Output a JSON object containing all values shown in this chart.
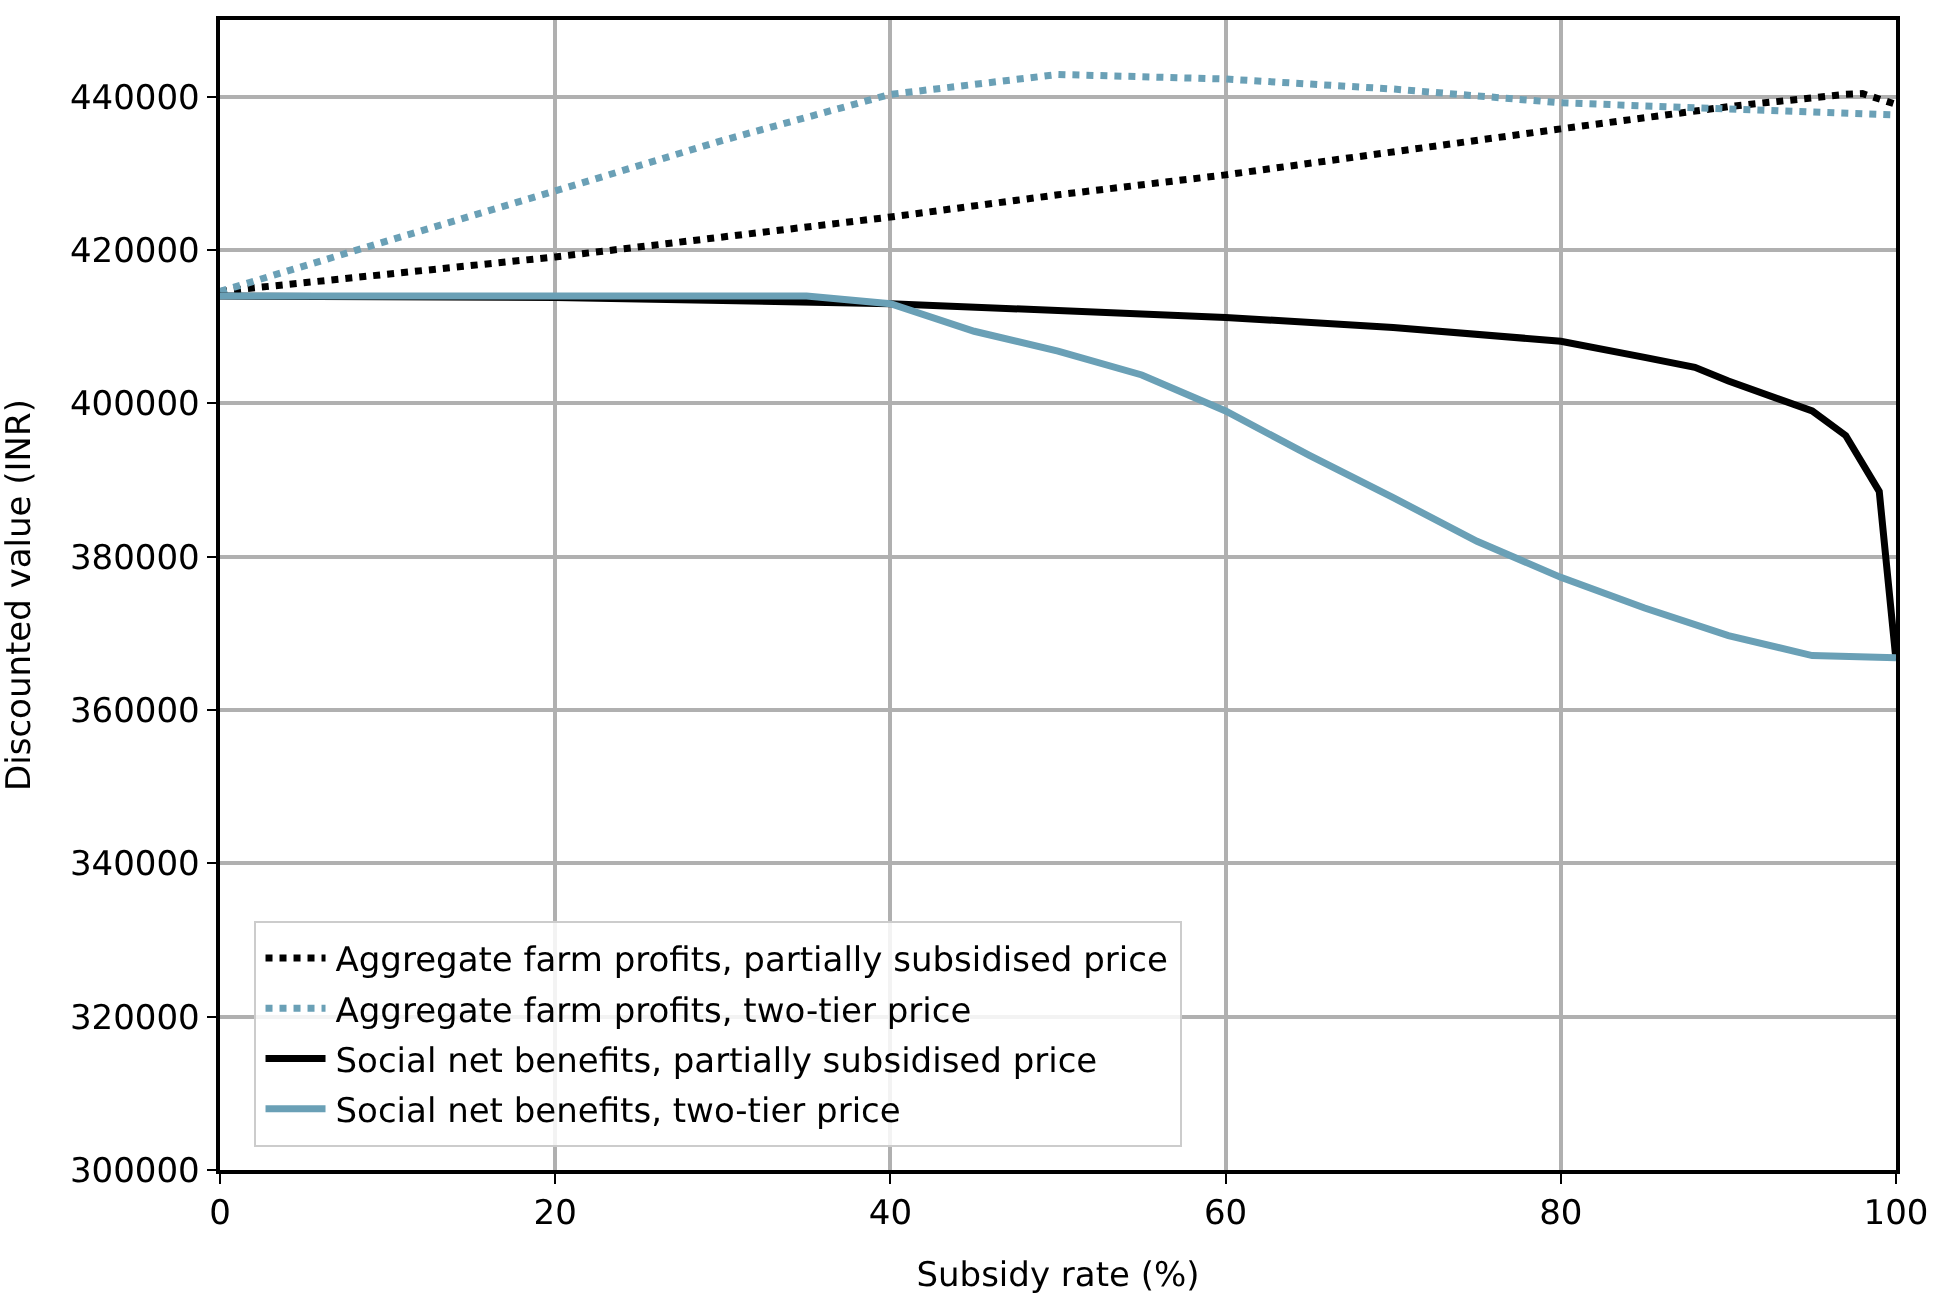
{
  "chart_data": {
    "type": "line",
    "xlabel": "Subsidy rate (%)",
    "ylabel": "Discounted value (INR)",
    "xlim": [
      0,
      100
    ],
    "xticks": [
      0,
      20,
      40,
      60,
      80,
      100
    ],
    "ylim": [
      300000,
      450000
    ],
    "yticks": [
      300000,
      320000,
      340000,
      360000,
      380000,
      400000,
      420000,
      440000
    ],
    "grid": true,
    "legend": "bottom left",
    "marker": "none",
    "series": [
      {
        "name": "Aggregate farm profits, partially subsidised price",
        "color": "#000000",
        "line_style": "dotted",
        "x": [
          0,
          20,
          40,
          50,
          60,
          80,
          90,
          97,
          98,
          100
        ],
        "values": [
          414600,
          419100,
          424300,
          427200,
          429800,
          435800,
          438700,
          440300,
          440400,
          439000
        ]
      },
      {
        "name": "Aggregate farm profits, two-tier price",
        "color": "#6aa0b6",
        "line_style": "dotted",
        "x": [
          0,
          10,
          20,
          30,
          40,
          50,
          60,
          70,
          80,
          90,
          100
        ],
        "values": [
          414600,
          421200,
          427700,
          434300,
          440300,
          442900,
          442300,
          441000,
          439200,
          438400,
          437600
        ]
      },
      {
        "name": "Social net benefits, partially subsidised price",
        "color": "#000000",
        "line_style": "solid",
        "x": [
          0,
          20,
          40,
          60,
          70,
          80,
          85,
          88,
          90,
          95,
          97,
          99,
          100
        ],
        "values": [
          414000,
          413800,
          413000,
          411200,
          409900,
          408100,
          406000,
          404700,
          402900,
          399000,
          395800,
          388500,
          366500
        ]
      },
      {
        "name": "Social net benefits, two-tier price",
        "color": "#6aa0b6",
        "line_style": "solid",
        "x": [
          0,
          20,
          35,
          40,
          45,
          50,
          55,
          60,
          65,
          70,
          75,
          80,
          85,
          90,
          95,
          100
        ],
        "values": [
          414000,
          414000,
          414000,
          413000,
          409400,
          406800,
          403700,
          399000,
          393200,
          387700,
          382000,
          377300,
          373300,
          369700,
          367100,
          366800
        ]
      }
    ]
  }
}
